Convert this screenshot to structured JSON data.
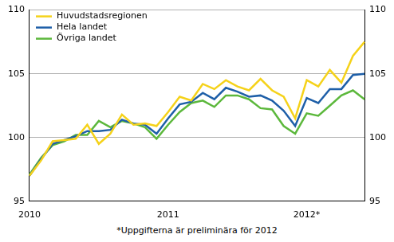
{
  "chart_data": {
    "type": "line",
    "categories": [
      "2010",
      null,
      null,
      null,
      null,
      null,
      null,
      null,
      null,
      null,
      null,
      null,
      "2011",
      null,
      null,
      null,
      null,
      null,
      null,
      null,
      null,
      null,
      null,
      null,
      "2012*",
      null,
      null,
      null,
      null,
      null
    ],
    "series": [
      {
        "name": "Huvudstadsregionen",
        "color": "#f5d21a",
        "values": [
          97.0,
          98.2,
          99.7,
          99.8,
          99.9,
          101.0,
          99.5,
          100.3,
          101.8,
          101.0,
          101.1,
          100.9,
          102.0,
          103.2,
          102.9,
          104.2,
          103.8,
          104.5,
          104.0,
          103.7,
          104.6,
          103.7,
          103.2,
          101.5,
          104.5,
          104.0,
          105.3,
          104.3,
          106.4,
          107.5
        ]
      },
      {
        "name": "Hela landet",
        "color": "#1e5fa8",
        "values": [
          97.0,
          98.3,
          99.5,
          99.8,
          100.1,
          100.5,
          100.5,
          100.6,
          101.4,
          101.1,
          101.0,
          100.3,
          101.5,
          102.6,
          102.8,
          103.5,
          103.0,
          103.9,
          103.6,
          103.2,
          103.3,
          102.9,
          102.1,
          100.9,
          103.1,
          102.7,
          103.8,
          103.8,
          104.9,
          105.0
        ]
      },
      {
        "name": "Övriga landet",
        "color": "#5cb83c",
        "values": [
          97.1,
          98.4,
          99.4,
          99.7,
          100.2,
          100.2,
          101.3,
          100.8,
          101.3,
          101.1,
          100.8,
          99.9,
          101.0,
          102.0,
          102.7,
          102.9,
          102.4,
          103.3,
          103.3,
          103.0,
          102.3,
          102.2,
          100.9,
          100.3,
          101.9,
          101.7,
          102.5,
          103.3,
          103.7,
          103.0
        ]
      }
    ],
    "ylim": [
      95,
      110
    ],
    "yticks": [
      95,
      100,
      105,
      110
    ],
    "y2lim": [
      95,
      110
    ],
    "y2ticks": [
      95,
      100,
      105,
      110
    ],
    "grid": true,
    "legend": "upper left",
    "annotations": [
      "*Uppgifterna är preliminära för 2012"
    ]
  }
}
